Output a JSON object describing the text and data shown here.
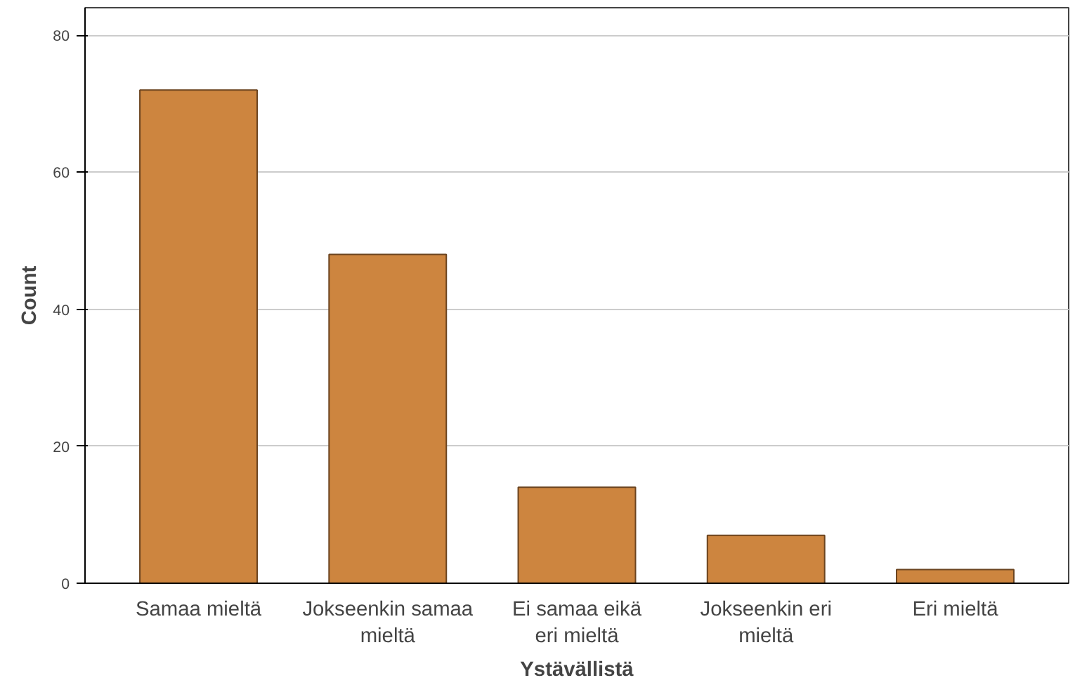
{
  "chart_data": {
    "type": "bar",
    "xlabel": "Ystävällistä",
    "ylabel": "Count",
    "categories": [
      "Samaa mieltä",
      "Jokseenkin samaa mieltä",
      "Ei samaa eikä eri mieltä",
      "Jokseenkin eri mieltä",
      "Eri mieltä"
    ],
    "values": [
      72,
      48,
      14,
      7,
      2
    ],
    "color": "#cd853f",
    "ylim": [
      0,
      84
    ],
    "yticks": [
      0,
      20,
      40,
      60,
      80
    ],
    "grid": "y"
  }
}
